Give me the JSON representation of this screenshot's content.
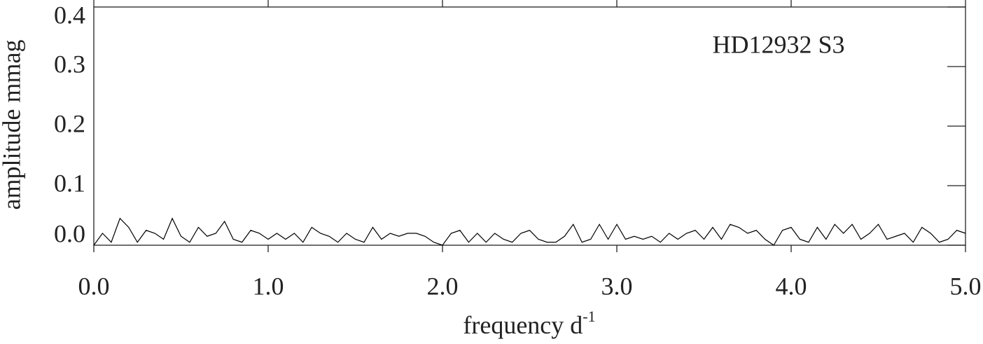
{
  "chart_data": {
    "type": "line",
    "annotation": "HD12932 S3",
    "xlabel": "frequency d",
    "xlabel_sup": "-1",
    "ylabel": "amplitude mmag",
    "color": "#000000",
    "xlim": [
      0,
      5
    ],
    "ylim": [
      0,
      0.4
    ],
    "xticks": [
      {
        "value": 0,
        "label": "0.0"
      },
      {
        "value": 1,
        "label": "1.0"
      },
      {
        "value": 2,
        "label": "2.0"
      },
      {
        "value": 3,
        "label": "3.0"
      },
      {
        "value": 4,
        "label": "4.0"
      },
      {
        "value": 5,
        "label": "5.0"
      }
    ],
    "yticks": [
      {
        "value": 0,
        "label": "0.0"
      },
      0.1,
      0.2,
      0.3,
      0.4
    ],
    "x": [
      0,
      0.05,
      0.1,
      0.15,
      0.2,
      0.25,
      0.3,
      0.35,
      0.4,
      0.45,
      0.5,
      0.55,
      0.6,
      0.65,
      0.7,
      0.75,
      0.8,
      0.85,
      0.9,
      0.95,
      1.0,
      1.05,
      1.1,
      1.15,
      1.2,
      1.25,
      1.3,
      1.35,
      1.4,
      1.45,
      1.5,
      1.55,
      1.6,
      1.65,
      1.7,
      1.75,
      1.8,
      1.85,
      1.9,
      1.95,
      2.0,
      2.05,
      2.1,
      2.15,
      2.2,
      2.25,
      2.3,
      2.35,
      2.4,
      2.45,
      2.5,
      2.55,
      2.6,
      2.65,
      2.7,
      2.75,
      2.8,
      2.85,
      2.9,
      2.95,
      3.0,
      3.05,
      3.1,
      3.15,
      3.2,
      3.25,
      3.3,
      3.35,
      3.4,
      3.45,
      3.5,
      3.55,
      3.6,
      3.65,
      3.7,
      3.75,
      3.8,
      3.85,
      3.9,
      3.95,
      4.0,
      4.05,
      4.1,
      4.15,
      4.2,
      4.25,
      4.3,
      4.35,
      4.4,
      4.45,
      4.5,
      4.55,
      4.6,
      4.65,
      4.7,
      4.75,
      4.8,
      4.85,
      4.9,
      4.95,
      5.0
    ],
    "values": [
      0,
      0.02,
      0.005,
      0.045,
      0.03,
      0.005,
      0.025,
      0.02,
      0.01,
      0.045,
      0.015,
      0.005,
      0.03,
      0.015,
      0.02,
      0.04,
      0.01,
      0.005,
      0.025,
      0.02,
      0.01,
      0.02,
      0.01,
      0.02,
      0.005,
      0.03,
      0.02,
      0.015,
      0.005,
      0.02,
      0.01,
      0.005,
      0.03,
      0.01,
      0.02,
      0.015,
      0.02,
      0.02,
      0.015,
      0.005,
      0.0,
      0.02,
      0.025,
      0.005,
      0.02,
      0.005,
      0.02,
      0.01,
      0.005,
      0.02,
      0.025,
      0.01,
      0.005,
      0.005,
      0.015,
      0.035,
      0.005,
      0.01,
      0.035,
      0.01,
      0.035,
      0.01,
      0.015,
      0.01,
      0.015,
      0.005,
      0.02,
      0.01,
      0.02,
      0.025,
      0.01,
      0.03,
      0.01,
      0.035,
      0.03,
      0.02,
      0.025,
      0.01,
      0.0,
      0.025,
      0.03,
      0.01,
      0.005,
      0.03,
      0.01,
      0.035,
      0.02,
      0.035,
      0.01,
      0.02,
      0.035,
      0.01,
      0.015,
      0.02,
      0.005,
      0.03,
      0.02,
      0.005,
      0.01,
      0.025,
      0.02
    ]
  }
}
